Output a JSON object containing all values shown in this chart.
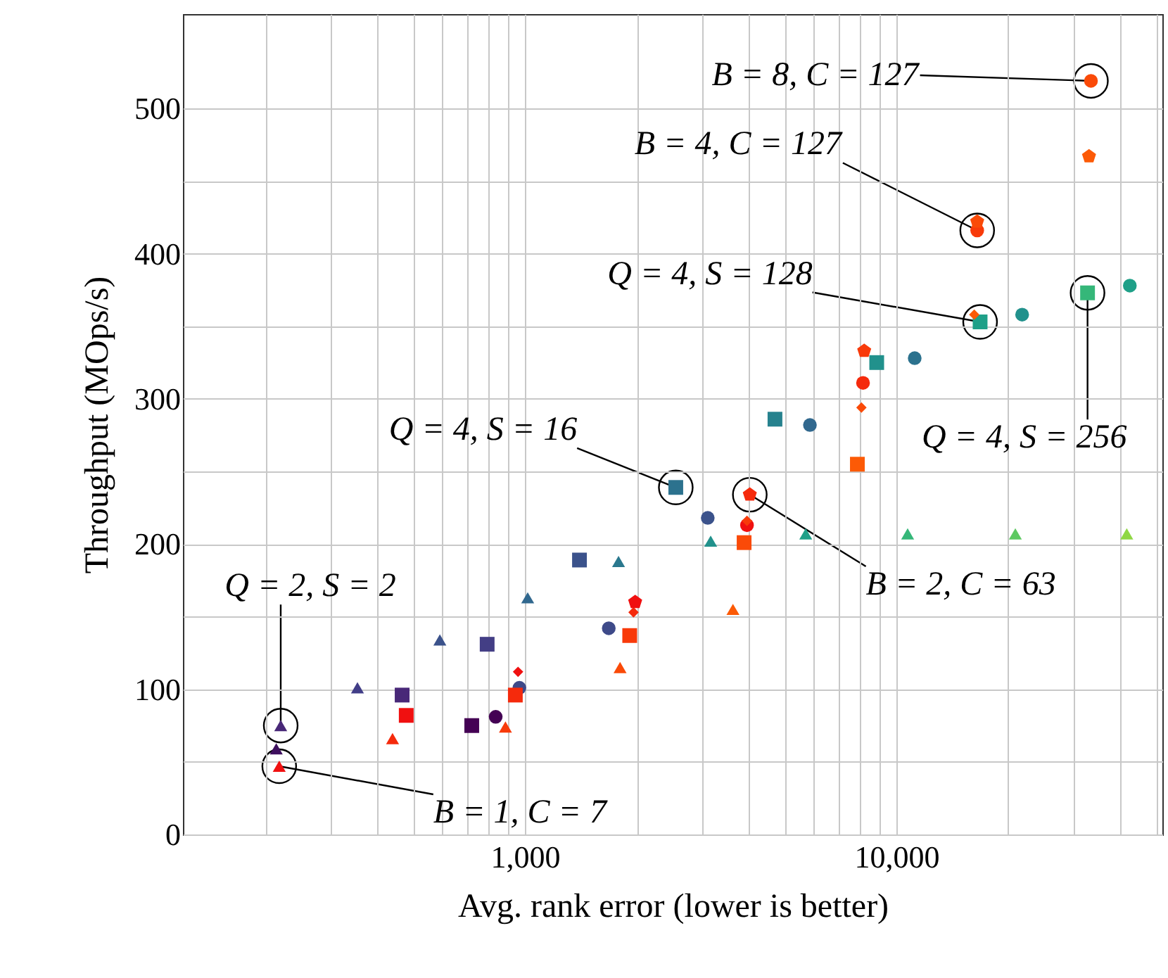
{
  "chart_data": {
    "type": "scatter",
    "xlabel": "Avg. rank error (lower is better)",
    "ylabel": "Throughput (MOps/s)",
    "log": "x",
    "grid": true,
    "xlim": [
      120,
      52000
    ],
    "xticks": [
      {
        "value": 200,
        "label": null
      },
      {
        "value": 300,
        "label": null
      },
      {
        "value": 400,
        "label": null
      },
      {
        "value": 500,
        "label": null
      },
      {
        "value": 600,
        "label": null
      },
      {
        "value": 700,
        "label": null
      },
      {
        "value": 800,
        "label": null
      },
      {
        "value": 900,
        "label": null
      },
      {
        "value": 1000,
        "label": "1,000"
      },
      {
        "value": 2000,
        "label": null
      },
      {
        "value": 3000,
        "label": null
      },
      {
        "value": 4000,
        "label": null
      },
      {
        "value": 5000,
        "label": null
      },
      {
        "value": 6000,
        "label": null
      },
      {
        "value": 7000,
        "label": null
      },
      {
        "value": 8000,
        "label": null
      },
      {
        "value": 9000,
        "label": null
      },
      {
        "value": 10000,
        "label": "10,000"
      },
      {
        "value": 20000,
        "label": null
      },
      {
        "value": 30000,
        "label": null
      },
      {
        "value": 40000,
        "label": null
      },
      {
        "value": 50000,
        "label": null
      }
    ],
    "ylim": [
      0,
      565
    ],
    "yticks": [
      0,
      {
        "value": 50,
        "label": null
      },
      100,
      {
        "value": 150,
        "label": null
      },
      200,
      {
        "value": 250,
        "label": null
      },
      300,
      {
        "value": 350,
        "label": null
      },
      400,
      {
        "value": 450,
        "label": null
      },
      500
    ],
    "series": [
      {
        "type": "scatter",
        "marker": "triangle",
        "x": [
          214,
          220,
          354,
          590,
          1017,
          1786,
          3162,
          5700,
          10720,
          20900,
          41700
        ],
        "values": [
          59,
          75,
          101,
          134,
          163,
          188,
          202,
          207,
          207,
          207,
          207
        ],
        "colors": [
          "#3d0f5e",
          "#482878",
          "#413d87",
          "#3b528b",
          "#31688e",
          "#2a788e",
          "#22918c",
          "#1fa088",
          "#35b779",
          "#5ec962",
          "#8fd744"
        ]
      },
      {
        "type": "scatter",
        "marker": "square",
        "x": [
          467,
          719,
          791,
          1402,
          2547,
          4710,
          8850,
          16800,
          32700
        ],
        "values": [
          96,
          75,
          131,
          189,
          239,
          286,
          325,
          353,
          373
        ],
        "colors": [
          "#482878",
          "#440154",
          "#433e85",
          "#3b528b",
          "#2c728e",
          "#26828e",
          "#21918c",
          "#1fa088",
          "#35b779"
        ]
      },
      {
        "type": "scatter",
        "marker": "circle",
        "x": [
          834,
          966,
          1681,
          3105,
          5850,
          11200,
          21800,
          42500
        ],
        "values": [
          81,
          101,
          142,
          218,
          282,
          328,
          358,
          378
        ],
        "colors": [
          "#440154",
          "#3e4989",
          "#3e4a89",
          "#3b528b",
          "#31688e",
          "#2c728e",
          "#21918c",
          "#1fa088"
        ]
      },
      {
        "type": "scatter",
        "marker": "triangle",
        "x": [
          218,
          440,
          886,
          1803,
          3630
        ],
        "values": [
          47,
          66,
          74,
          115,
          155
        ],
        "colors": [
          "#f01010",
          "#f52a0c",
          "#f83a0a",
          "#fa4a08",
          "#fc5a06"
        ]
      },
      {
        "type": "scatter",
        "marker": "square",
        "x": [
          479,
          942,
          1914,
          3890,
          7850
        ],
        "values": [
          82,
          96,
          137,
          201,
          255
        ],
        "colors": [
          "#f01010",
          "#f52a0c",
          "#f83a0a",
          "#fa4a08",
          "#fc5a06"
        ]
      },
      {
        "type": "scatter",
        "marker": "circle",
        "x": [
          3960,
          8130,
          16500,
          33400
        ],
        "values": [
          213,
          311,
          416,
          519
        ],
        "colors": [
          "#f01010",
          "#f52a0c",
          "#f83a0a",
          "#fa4a08"
        ]
      },
      {
        "type": "scatter",
        "marker": "diamond",
        "x": [
          958,
          1960,
          3960,
          8050,
          16200
        ],
        "values": [
          112,
          153,
          216,
          294,
          358
        ],
        "colors": [
          "#f01010",
          "#f52a0c",
          "#f83a0a",
          "#fa4a08",
          "#fc5a06"
        ]
      },
      {
        "type": "scatter",
        "x": [
          1980,
          4030,
          8190,
          16500,
          33000
        ],
        "values": [
          160,
          234,
          333,
          422,
          467
        ],
        "colors": [
          "#f01010",
          "#f52a0c",
          "#f83a0a",
          "#fa4a08",
          "#fc5a06"
        ]
      }
    ],
    "annotations": [
      {
        "text": "Q = 2,  S = 2",
        "x": 220,
        "y": 75
      },
      {
        "text": "B = 1,  C = 7",
        "x": 218,
        "y": 47
      },
      {
        "text": "Q = 4,  S = 16",
        "x": 2547,
        "y": 239
      },
      {
        "text": "B = 2,  C = 63",
        "x": 4030,
        "y": 234
      },
      {
        "text": "Q = 4,  S = 128",
        "x": 16800,
        "y": 353
      },
      {
        "text": "Q = 4,  S = 256",
        "x": 32700,
        "y": 373
      },
      {
        "text": "B = 4,  C = 127",
        "x": 16500,
        "y": 416
      },
      {
        "text": "B = 8,  C = 127",
        "x": 33400,
        "y": 519
      }
    ]
  }
}
